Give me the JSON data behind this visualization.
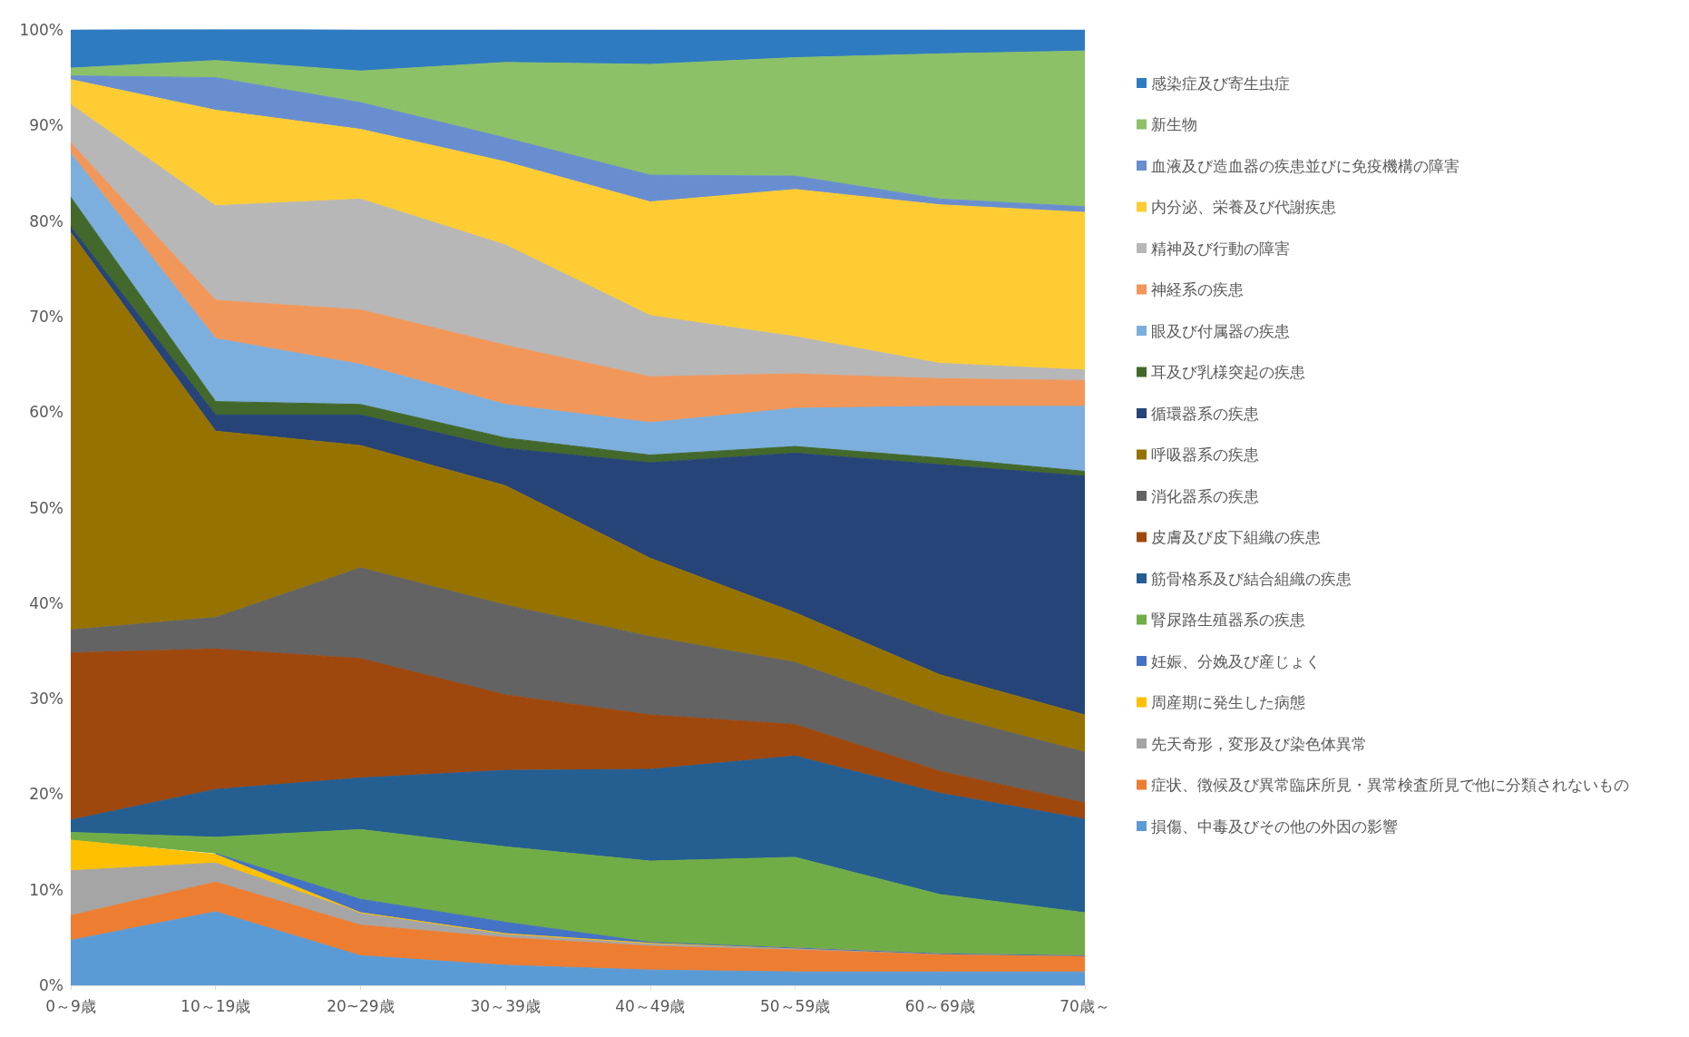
{
  "chart_data": {
    "type": "area",
    "stacked": true,
    "legend": "right",
    "categories": [
      "0～9歳",
      "10～19歳",
      "20~29歳",
      "30～39歳",
      "40～49歳",
      "50～59歳",
      "60～69歳",
      "70歳～"
    ],
    "ylim": [
      0,
      100
    ],
    "yticks": [
      {
        "value": 0,
        "label": "0%"
      },
      {
        "value": 10,
        "label": "10%"
      },
      {
        "value": 20,
        "label": "20%"
      },
      {
        "value": 30,
        "label": "30%"
      },
      {
        "value": 40,
        "label": "40%"
      },
      {
        "value": 50,
        "label": "50%"
      },
      {
        "value": 60,
        "label": "60%"
      },
      {
        "value": 70,
        "label": "70%"
      },
      {
        "value": 80,
        "label": "80%"
      },
      {
        "value": 90,
        "label": "90%"
      },
      {
        "value": 100,
        "label": "100%"
      }
    ],
    "series": [
      {
        "name": "損傷、中毒及びその他の外因の影響",
        "color": "#5b9bd5",
        "values": [
          4.7,
          7.7,
          3.1,
          2.1,
          1.6,
          1.4,
          1.4,
          1.4
        ]
      },
      {
        "name": "症状、徴候及び異常臨床所見・異常検査所見で他に分類されないもの",
        "color": "#ed7d31",
        "values": [
          2.6,
          3.1,
          3.2,
          2.9,
          2.5,
          2.3,
          1.8,
          1.7
        ]
      },
      {
        "name": "先天奇形，変形及び染色体異常",
        "color": "#a5a5a5",
        "values": [
          4.7,
          2.0,
          1.3,
          0.4,
          0.3,
          0.2,
          0.1,
          0
        ]
      },
      {
        "name": "周産期に発生した病態",
        "color": "#ffc000",
        "values": [
          3.2,
          0.9,
          0,
          0,
          0,
          0,
          0,
          0
        ]
      },
      {
        "name": "妊娠、分娩及び産じょく",
        "color": "#4472c4",
        "values": [
          null,
          0.1,
          1.4,
          1.2,
          0.1,
          0,
          0,
          0
        ]
      },
      {
        "name": "腎尿路生殖器系の疾患",
        "color": "#70ad47",
        "values": [
          0.8,
          1.7,
          7.3,
          7.9,
          8.5,
          9.5,
          6.2,
          4.5
        ]
      },
      {
        "name": "筋骨格系及び結合組織の疾患",
        "color": "#255e91",
        "values": [
          1.3,
          5.0,
          5.4,
          8.0,
          9.6,
          10.6,
          10.6,
          9.8
        ]
      },
      {
        "name": "皮膚及び皮下組織の疾患",
        "color": "#9e480e",
        "values": [
          17.5,
          14.7,
          12.5,
          7.9,
          5.7,
          3.3,
          2.3,
          1.7
        ]
      },
      {
        "name": "消化器系の疾患",
        "color": "#636363",
        "values": [
          2.4,
          3.3,
          9.5,
          9.4,
          8.2,
          6.5,
          6.0,
          5.3
        ]
      },
      {
        "name": "呼吸器系の疾患",
        "color": "#967300",
        "values": [
          41.6,
          19.5,
          12.8,
          12.5,
          8.2,
          5.2,
          4.1,
          3.9
        ]
      },
      {
        "name": "循環器系の疾患",
        "color": "#264478",
        "values": [
          0.6,
          1.7,
          3.2,
          3.9,
          10.0,
          16.7,
          22.0,
          25.0
        ]
      },
      {
        "name": "耳及び乳様突起の疾患",
        "color": "#43682b",
        "values": [
          3.1,
          1.4,
          1.1,
          1.1,
          0.8,
          0.7,
          0.7,
          0.5
        ]
      },
      {
        "name": "眼及び付属器の疾患",
        "color": "#7cafdd",
        "values": [
          4.6,
          6.6,
          4.2,
          3.5,
          3.4,
          4.0,
          5.4,
          6.8
        ]
      },
      {
        "name": "神経系の疾患",
        "color": "#f1975a",
        "values": [
          1.1,
          4.0,
          5.7,
          6.2,
          4.8,
          3.6,
          2.9,
          2.7
        ]
      },
      {
        "name": "精神及び行動の障害",
        "color": "#b7b7b7",
        "values": [
          4.0,
          9.9,
          11.6,
          10.5,
          6.4,
          3.9,
          1.6,
          1.1
        ]
      },
      {
        "name": "内分泌、栄養及び代謝疾患",
        "color": "#ffcd33",
        "values": [
          2.6,
          10.0,
          7.3,
          8.7,
          11.9,
          15.4,
          16.6,
          16.5
        ]
      },
      {
        "name": "血液及び造血器の疾患並びに免疫機構の障害",
        "color": "#698ed0",
        "values": [
          0.4,
          3.4,
          2.8,
          2.5,
          2.8,
          1.4,
          0.6,
          0.6
        ]
      },
      {
        "name": "新生物",
        "color": "#8cc168",
        "values": [
          0.8,
          1.8,
          3.3,
          7.9,
          11.6,
          12.4,
          15.2,
          16.3
        ]
      },
      {
        "name": "感染症及び寄生虫症",
        "color": "#2f7bc1",
        "values": [
          4.0,
          3.3,
          4.3,
          3.4,
          3.6,
          2.9,
          2.5,
          2.2
        ]
      }
    ]
  }
}
